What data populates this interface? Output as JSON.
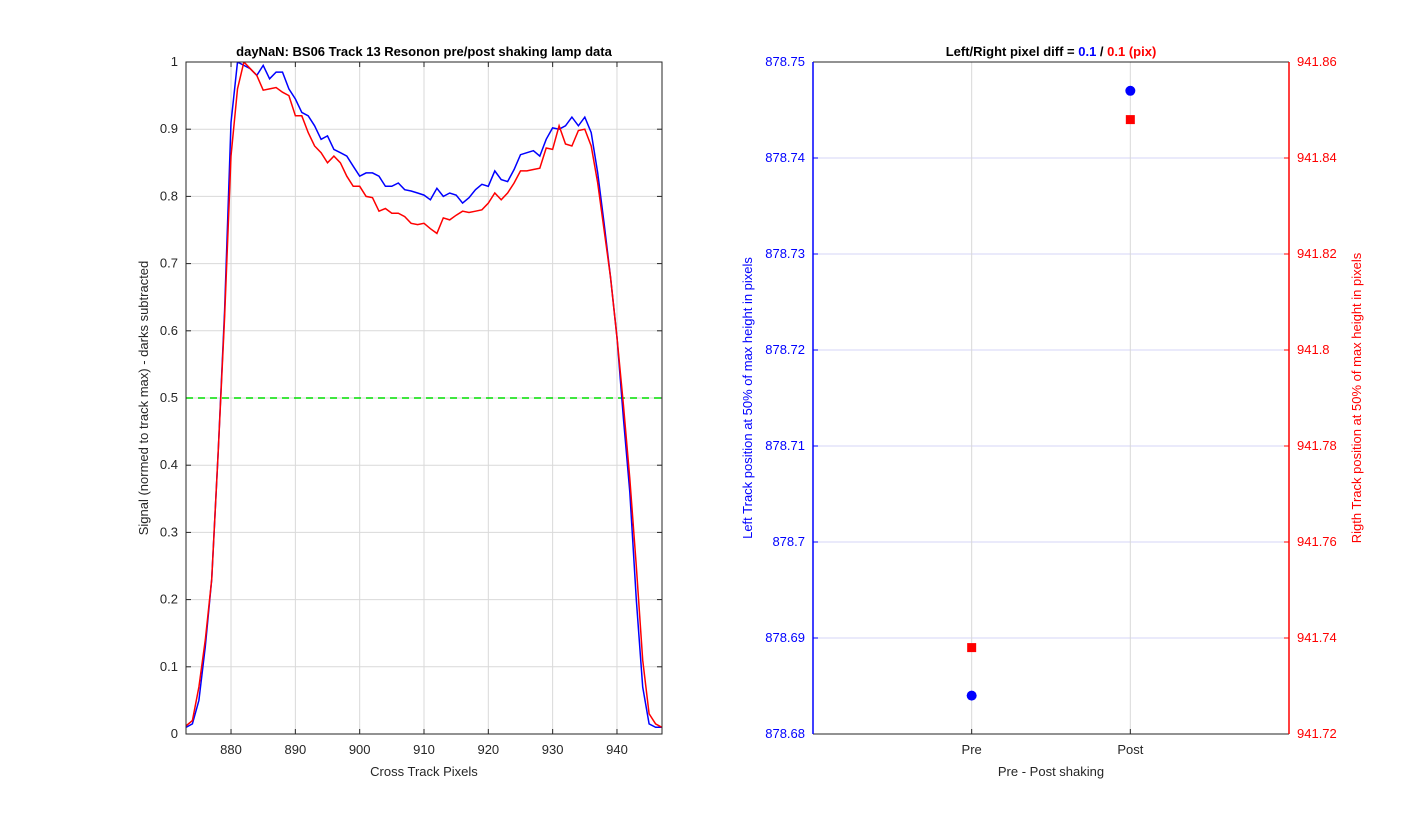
{
  "chart_data": [
    {
      "type": "line",
      "title": "dayNaN: BS06  Track 13 Resonon pre/post shaking lamp data",
      "xlabel": "Cross Track Pixels",
      "ylabel": "Signal (normed to track max) - darks subtracted",
      "xlim": [
        873,
        947
      ],
      "ylim": [
        0,
        1
      ],
      "xticks": [
        880,
        890,
        900,
        910,
        920,
        930,
        940
      ],
      "yticks": [
        0,
        0.1,
        0.2,
        0.3,
        0.4,
        0.5,
        0.6,
        0.7,
        0.8,
        0.9,
        1
      ],
      "grid": true,
      "reference_line": {
        "y": 0.5,
        "color": "#00dd00",
        "style": "dashed"
      },
      "series": [
        {
          "color": "#0000ff",
          "x": [
            873,
            874,
            875,
            876,
            877,
            878,
            879,
            880,
            881,
            882,
            883,
            884,
            885,
            886,
            887,
            888,
            889,
            890,
            891,
            892,
            893,
            894,
            895,
            896,
            897,
            898,
            899,
            900,
            901,
            902,
            903,
            904,
            905,
            906,
            907,
            908,
            909,
            910,
            911,
            912,
            913,
            914,
            915,
            916,
            917,
            918,
            919,
            920,
            921,
            922,
            923,
            924,
            925,
            926,
            927,
            928,
            929,
            930,
            931,
            932,
            933,
            934,
            935,
            936,
            937,
            938,
            939,
            940,
            941,
            942,
            943,
            944,
            945,
            946,
            947
          ],
          "y": [
            0.01,
            0.015,
            0.05,
            0.13,
            0.23,
            0.42,
            0.63,
            0.91,
            1.0,
            0.995,
            0.99,
            0.98,
            0.995,
            0.975,
            0.985,
            0.985,
            0.96,
            0.945,
            0.925,
            0.92,
            0.905,
            0.885,
            0.89,
            0.87,
            0.865,
            0.86,
            0.845,
            0.83,
            0.835,
            0.835,
            0.83,
            0.815,
            0.815,
            0.82,
            0.81,
            0.808,
            0.805,
            0.802,
            0.795,
            0.812,
            0.8,
            0.805,
            0.802,
            0.79,
            0.798,
            0.81,
            0.818,
            0.815,
            0.838,
            0.825,
            0.822,
            0.84,
            0.862,
            0.865,
            0.868,
            0.86,
            0.885,
            0.902,
            0.9,
            0.905,
            0.918,
            0.905,
            0.918,
            0.895,
            0.835,
            0.76,
            0.68,
            0.59,
            0.47,
            0.36,
            0.2,
            0.07,
            0.015,
            0.01,
            0.01
          ]
        },
        {
          "color": "#ff0000",
          "x": [
            873,
            874,
            875,
            876,
            877,
            878,
            879,
            880,
            881,
            882,
            883,
            884,
            885,
            886,
            887,
            888,
            889,
            890,
            891,
            892,
            893,
            894,
            895,
            896,
            897,
            898,
            899,
            900,
            901,
            902,
            903,
            904,
            905,
            906,
            907,
            908,
            909,
            910,
            911,
            912,
            913,
            914,
            915,
            916,
            917,
            918,
            919,
            920,
            921,
            922,
            923,
            924,
            925,
            926,
            927,
            928,
            929,
            930,
            931,
            932,
            933,
            934,
            935,
            936,
            937,
            938,
            939,
            940,
            941,
            942,
            943,
            944,
            945,
            946,
            947
          ],
          "y": [
            0.012,
            0.02,
            0.07,
            0.14,
            0.23,
            0.42,
            0.62,
            0.86,
            0.96,
            1.0,
            0.99,
            0.98,
            0.958,
            0.96,
            0.962,
            0.955,
            0.95,
            0.92,
            0.92,
            0.895,
            0.875,
            0.865,
            0.85,
            0.86,
            0.85,
            0.83,
            0.815,
            0.815,
            0.8,
            0.798,
            0.778,
            0.782,
            0.775,
            0.775,
            0.77,
            0.76,
            0.758,
            0.76,
            0.752,
            0.745,
            0.768,
            0.765,
            0.772,
            0.778,
            0.776,
            0.778,
            0.78,
            0.79,
            0.805,
            0.795,
            0.805,
            0.82,
            0.838,
            0.838,
            0.84,
            0.842,
            0.872,
            0.87,
            0.905,
            0.878,
            0.875,
            0.898,
            0.9,
            0.875,
            0.82,
            0.75,
            0.68,
            0.59,
            0.49,
            0.38,
            0.25,
            0.11,
            0.03,
            0.015,
            0.01
          ]
        }
      ]
    },
    {
      "type": "scatter",
      "title_parts": [
        {
          "text": "Left/Right pixel diff = ",
          "color": "#000000"
        },
        {
          "text": "0.1",
          "color": "#0000ff"
        },
        {
          "text": " / ",
          "color": "#000000"
        },
        {
          "text": "0.1 (pix)",
          "color": "#ff0000"
        }
      ],
      "xlabel": "Pre - Post shaking",
      "ylabel_left": "Left Track position at 50% of max height in pixels",
      "ylabel_right": "Rigth Track position at 50% of max height in pixels",
      "categories": [
        "Pre",
        "Post"
      ],
      "ylim_left": [
        878.68,
        878.75
      ],
      "yticks_left": [
        "878.68",
        "878.69",
        "878.7",
        "878.71",
        "878.72",
        "878.73",
        "878.74",
        "878.75"
      ],
      "ylim_right": [
        941.72,
        941.86
      ],
      "yticks_right": [
        "941.72",
        "941.74",
        "941.76",
        "941.78",
        "941.8",
        "941.82",
        "941.84",
        "941.86"
      ],
      "grid": true,
      "series": [
        {
          "axis": "left",
          "marker": "circle",
          "color": "#0000ff",
          "values": [
            878.684,
            878.747
          ]
        },
        {
          "axis": "right",
          "marker": "square",
          "color": "#ff0000",
          "values": [
            941.738,
            941.848
          ]
        }
      ]
    }
  ]
}
